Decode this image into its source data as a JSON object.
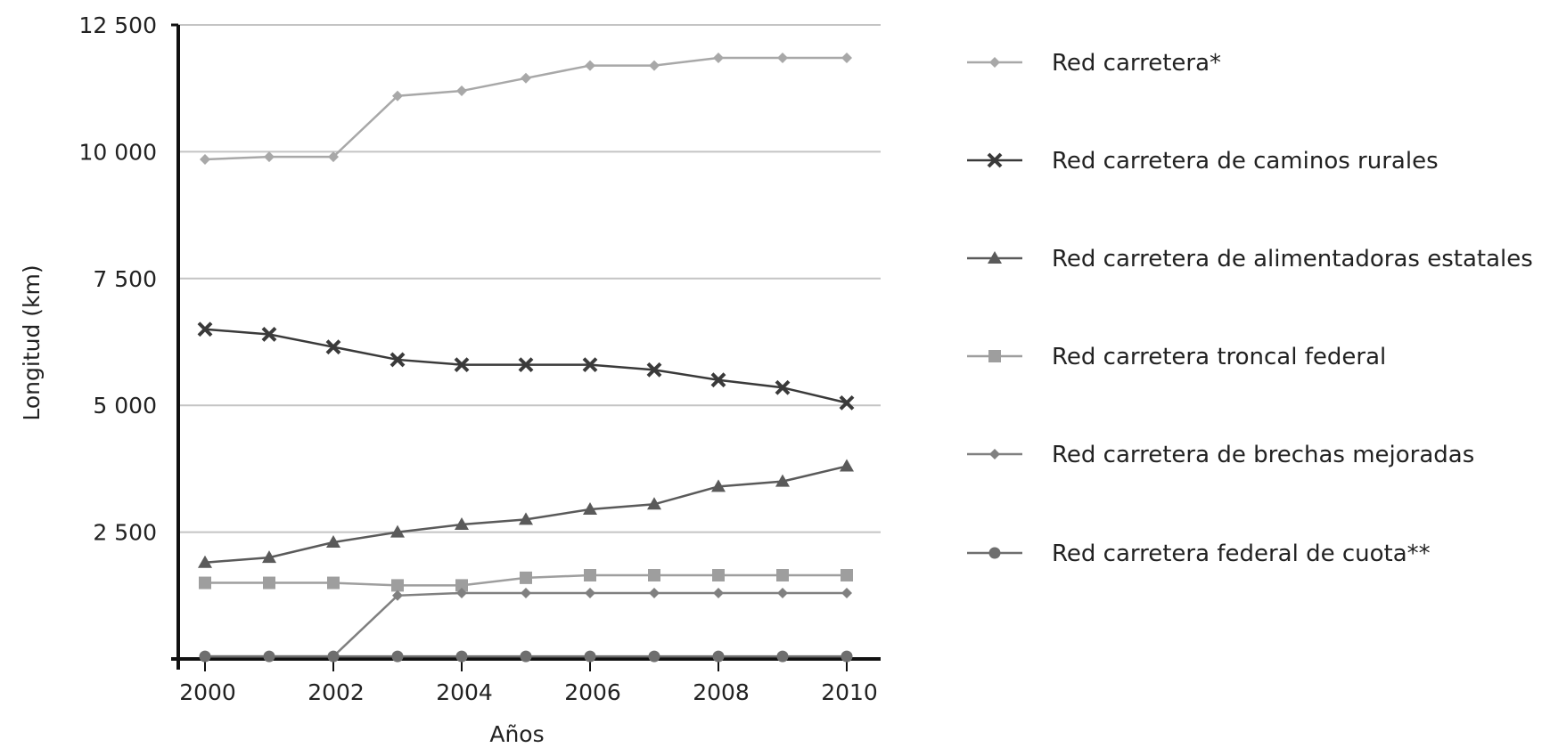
{
  "chart_data": {
    "type": "line",
    "title": "",
    "xlabel": "Años",
    "ylabel": "Longitud (km)",
    "x": [
      2000,
      2001,
      2002,
      2003,
      2004,
      2005,
      2006,
      2007,
      2008,
      2009,
      2010
    ],
    "xticks": [
      "2000",
      "2002",
      "2004",
      "2006",
      "2008",
      "2010"
    ],
    "xlim": [
      2000,
      2010
    ],
    "ylim": [
      0,
      12500
    ],
    "yticks": [
      {
        "value": 2500,
        "label": "2 500"
      },
      {
        "value": 5000,
        "label": "5 000"
      },
      {
        "value": 7500,
        "label": "7 500"
      },
      {
        "value": 10000,
        "label": "10 000"
      },
      {
        "value": 12500,
        "label": "12 500"
      }
    ],
    "grid": "horizontal",
    "legend_position": "right",
    "series": [
      {
        "name": "Red carretera*",
        "marker": "diamond",
        "color": "#a8a8a8",
        "values": [
          9850,
          9900,
          9900,
          11100,
          11200,
          11450,
          11700,
          11700,
          11850,
          11850,
          11850
        ]
      },
      {
        "name": "Red carretera de caminos rurales",
        "marker": "x",
        "color": "#3a3a3a",
        "values": [
          6500,
          6400,
          6150,
          5900,
          5800,
          5800,
          5800,
          5700,
          5500,
          5350,
          5050
        ]
      },
      {
        "name": "Red carretera de alimentadoras estatales",
        "marker": "triangle",
        "color": "#5a5a5a",
        "values": [
          1900,
          2000,
          2300,
          2500,
          2650,
          2750,
          2950,
          3050,
          3400,
          3500,
          3800
        ]
      },
      {
        "name": "Red carretera troncal federal",
        "marker": "square",
        "color": "#9e9e9e",
        "values": [
          1500,
          1500,
          1500,
          1450,
          1450,
          1600,
          1650,
          1650,
          1650,
          1650,
          1650
        ]
      },
      {
        "name": "Red carretera de brechas mejoradas",
        "marker": "diamond",
        "color": "#808080",
        "values": [
          50,
          50,
          50,
          1250,
          1300,
          1300,
          1300,
          1300,
          1300,
          1300,
          1300
        ]
      },
      {
        "name": "Red carretera federal de cuota**",
        "marker": "circle",
        "color": "#6e6e6e",
        "values": [
          50,
          50,
          50,
          50,
          50,
          50,
          50,
          50,
          50,
          50,
          50
        ]
      }
    ]
  }
}
